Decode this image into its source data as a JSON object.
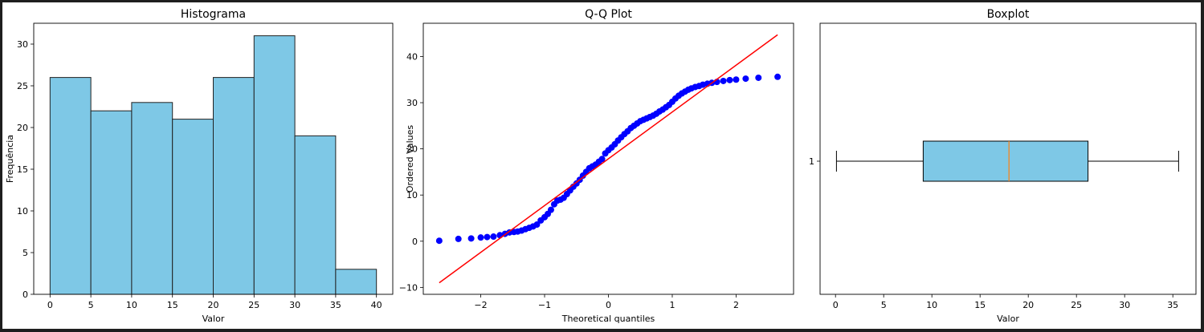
{
  "chart_data": [
    {
      "type": "bar",
      "title": "Histograma",
      "xlabel": "Valor",
      "ylabel": "Frequência",
      "bin_edges": [
        0,
        5,
        10,
        15,
        20,
        25,
        30,
        35,
        40
      ],
      "values": [
        26,
        22,
        23,
        21,
        26,
        31,
        19,
        3
      ],
      "xlim": [
        -2,
        42
      ],
      "ylim": [
        0,
        32.5
      ],
      "xticks": [
        0,
        5,
        10,
        15,
        20,
        25,
        30,
        35,
        40
      ],
      "yticks": [
        0,
        5,
        10,
        15,
        20,
        25,
        30
      ],
      "bar_color": "#7ec8e6",
      "edge_color": "#222222"
    },
    {
      "type": "scatter",
      "title": "Q-Q Plot",
      "xlabel": "Theoretical quantiles",
      "ylabel": "Ordered Values",
      "xlim": [
        -2.9,
        2.9
      ],
      "ylim": [
        -11.5,
        47.2
      ],
      "xticks": [
        -2,
        -1,
        0,
        1,
        2
      ],
      "yticks": [
        -10,
        0,
        10,
        20,
        30,
        40
      ],
      "point_color": "#0000ff",
      "line_color": "#ff0000",
      "fit_line": {
        "x": [
          -2.65,
          2.65
        ],
        "y": [
          -9,
          44.7
        ]
      },
      "points": {
        "x": [
          -2.65,
          -2.35,
          -2.15,
          -2.0,
          -1.9,
          -1.8,
          -1.7,
          -1.62,
          -1.55,
          -1.48,
          -1.42,
          -1.36,
          -1.3,
          -1.24,
          -1.18,
          -1.12,
          -1.06,
          -1.0,
          -0.95,
          -0.9,
          -0.85,
          -0.8,
          -0.75,
          -0.7,
          -0.65,
          -0.6,
          -0.55,
          -0.5,
          -0.45,
          -0.4,
          -0.35,
          -0.3,
          -0.25,
          -0.2,
          -0.15,
          -0.1,
          -0.05,
          0.0,
          0.05,
          0.1,
          0.15,
          0.2,
          0.25,
          0.3,
          0.35,
          0.4,
          0.45,
          0.5,
          0.55,
          0.6,
          0.65,
          0.7,
          0.75,
          0.8,
          0.85,
          0.9,
          0.95,
          1.0,
          1.05,
          1.1,
          1.15,
          1.2,
          1.25,
          1.3,
          1.36,
          1.42,
          1.48,
          1.55,
          1.62,
          1.7,
          1.8,
          1.9,
          2.0,
          2.15,
          2.35,
          2.65
        ],
        "y": [
          0.1,
          0.5,
          0.6,
          0.8,
          0.9,
          1.0,
          1.3,
          1.6,
          1.9,
          2.0,
          2.1,
          2.3,
          2.6,
          2.9,
          3.2,
          3.6,
          4.5,
          5.2,
          5.9,
          6.8,
          8.0,
          8.8,
          9.0,
          9.4,
          10.2,
          11.0,
          11.8,
          12.5,
          13.3,
          14.2,
          15.0,
          15.8,
          16.2,
          16.6,
          17.2,
          17.8,
          19.0,
          19.7,
          20.3,
          21.0,
          21.8,
          22.5,
          23.2,
          23.8,
          24.5,
          25.0,
          25.5,
          26.0,
          26.3,
          26.6,
          26.9,
          27.2,
          27.6,
          28.1,
          28.5,
          29.0,
          29.5,
          30.2,
          30.9,
          31.5,
          32.0,
          32.4,
          32.8,
          33.1,
          33.4,
          33.6,
          33.9,
          34.1,
          34.3,
          34.5,
          34.7,
          34.9,
          35.0,
          35.2,
          35.4,
          35.6
        ]
      }
    },
    {
      "type": "boxplot",
      "title": "Boxplot",
      "xlabel": "Valor",
      "ylabel": "",
      "orientation": "horizontal",
      "category": "1",
      "min": 0.1,
      "q1": 9.1,
      "median": 18.0,
      "q3": 26.2,
      "max": 35.6,
      "xlim": [
        -1.6,
        37.4
      ],
      "xticks": [
        0,
        5,
        10,
        15,
        20,
        25,
        30,
        35
      ],
      "box_color": "#7ec8e6",
      "median_color": "#ff7f0e"
    }
  ]
}
